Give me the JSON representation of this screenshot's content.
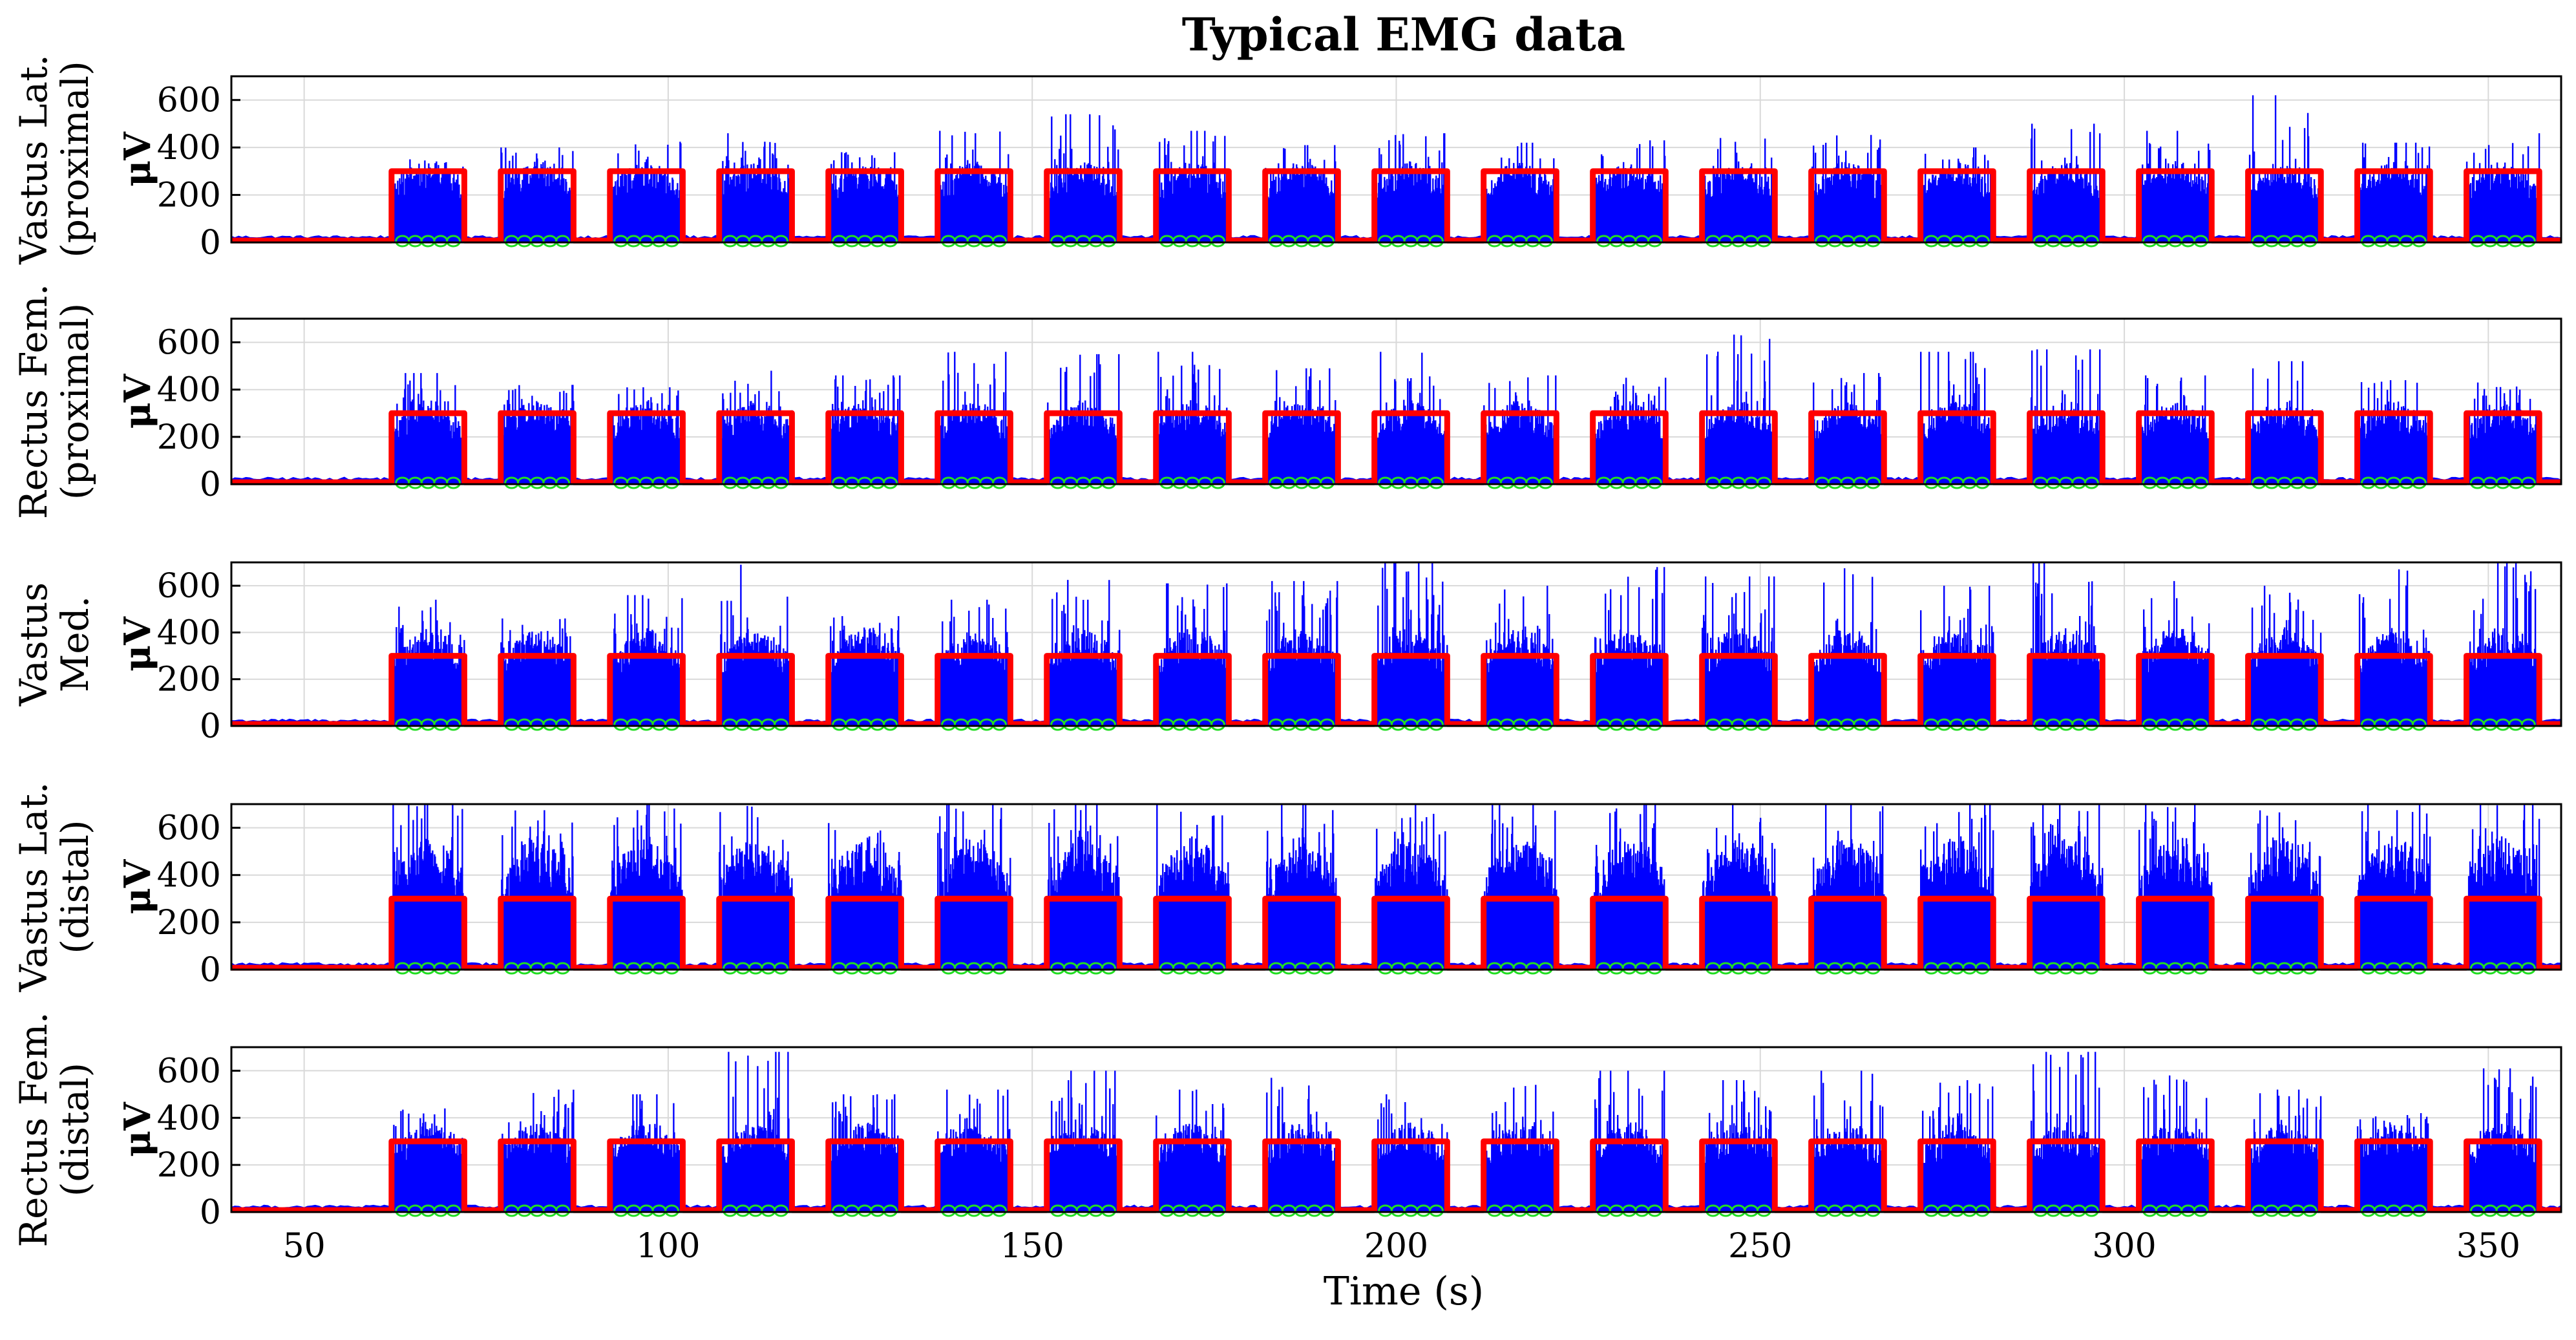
{
  "chart_data": {
    "type": "line",
    "title": "Typical EMG data",
    "xlabel": "Time (s)",
    "xlim": [
      40,
      360
    ],
    "xticks": [
      50,
      100,
      150,
      200,
      250,
      300,
      350
    ],
    "unit_label": "μV",
    "yticks": [
      0,
      200,
      400,
      600
    ],
    "grid": true,
    "series_styles": {
      "emg": "#0000ff",
      "trigger": "#ff0000",
      "onset_markers": "#22dd22"
    },
    "trigger": {
      "low": 0,
      "high": 300,
      "on_intervals": [
        [
          62,
          72
        ],
        [
          77,
          87
        ],
        [
          92,
          102
        ],
        [
          107,
          117
        ],
        [
          122,
          132
        ],
        [
          137,
          147
        ],
        [
          152,
          162
        ],
        [
          167,
          177
        ],
        [
          182,
          192
        ],
        [
          197,
          207
        ],
        [
          212,
          222
        ],
        [
          227,
          237
        ],
        [
          242,
          252
        ],
        [
          257,
          267
        ],
        [
          272,
          282
        ],
        [
          287,
          297
        ],
        [
          302,
          312
        ],
        [
          317,
          327
        ],
        [
          332,
          342
        ],
        [
          347,
          357
        ]
      ]
    },
    "panels": [
      {
        "ylabel": [
          "Vastus Lat.",
          "(proximal)"
        ],
        "ylim": [
          0,
          700
        ],
        "burst_peaks": [
          350,
          400,
          430,
          460,
          380,
          470,
          540,
          470,
          410,
          460,
          420,
          430,
          440,
          460,
          400,
          500,
          470,
          620,
          420,
          460
        ],
        "body_level": 260
      },
      {
        "ylabel": [
          "Rectus Fem.",
          "(proximal)"
        ],
        "ylim": [
          0,
          700
        ],
        "burst_peaks": [
          470,
          420,
          410,
          480,
          460,
          560,
          550,
          560,
          490,
          560,
          460,
          450,
          640,
          470,
          560,
          570,
          460,
          520,
          440,
          430
        ],
        "body_level": 270
      },
      {
        "ylabel": [
          "Vastus",
          "Med."
        ],
        "ylim": [
          0,
          700
        ],
        "burst_peaks": [
          540,
          460,
          560,
          690,
          470,
          540,
          640,
          610,
          620,
          700,
          600,
          680,
          640,
          690,
          600,
          700,
          620,
          600,
          670,
          700
        ],
        "body_level": 320
      },
      {
        "ylabel": [
          "Vastus Lat.",
          "(distal)"
        ],
        "ylim": [
          0,
          700
        ],
        "burst_peaks": [
          700,
          680,
          700,
          700,
          620,
          700,
          700,
          700,
          700,
          700,
          700,
          700,
          700,
          700,
          700,
          700,
          700,
          700,
          700,
          700
        ],
        "body_level": 430
      },
      {
        "ylabel": [
          "Rectus Fem.",
          "(distal)"
        ],
        "ylim": [
          0,
          700
        ],
        "burst_peaks": [
          440,
          520,
          500,
          680,
          500,
          520,
          600,
          520,
          570,
          500,
          540,
          600,
          560,
          600,
          560,
          680,
          580,
          520,
          420,
          610
        ],
        "body_level": 290
      }
    ]
  }
}
